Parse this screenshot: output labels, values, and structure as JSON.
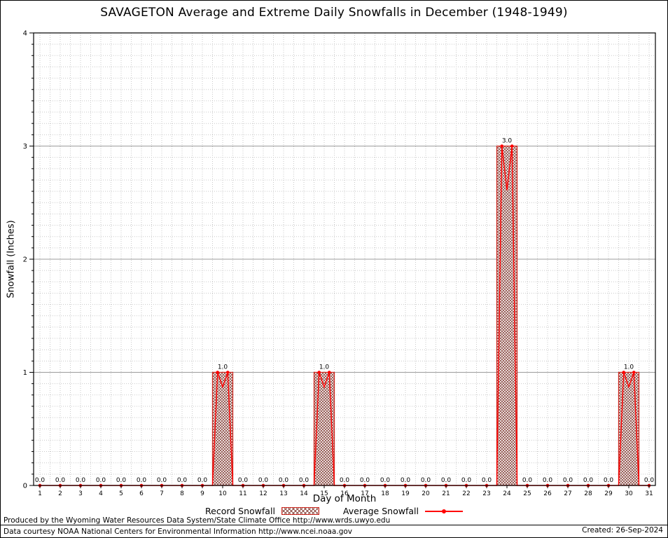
{
  "title": "SAVAGETON Average and Extreme Daily Snowfalls in December (1948-1949)",
  "chart_data": {
    "type": "bar",
    "title": "SAVAGETON Average and Extreme Daily Snowfalls in December (1948-1949)",
    "xlabel": "Day of Month",
    "ylabel": "Snowfall (Inches)",
    "ylim": [
      0,
      4
    ],
    "y_ticks": [
      0,
      1,
      2,
      3,
      4
    ],
    "grid": "on",
    "legend_position": "bottom",
    "categories": [
      1,
      2,
      3,
      4,
      5,
      6,
      7,
      8,
      9,
      10,
      11,
      12,
      13,
      14,
      15,
      16,
      17,
      18,
      19,
      20,
      21,
      22,
      23,
      24,
      25,
      26,
      27,
      28,
      29,
      30,
      31
    ],
    "series": [
      {
        "name": "Record Snowfall",
        "type": "bar",
        "values": [
          0,
          0,
          0,
          0,
          0,
          0,
          0,
          0,
          0,
          1.0,
          0,
          0,
          0,
          0,
          1.0,
          0,
          0,
          0,
          0,
          0,
          0,
          0,
          0,
          3.0,
          0,
          0,
          0,
          0,
          0,
          1.0,
          0
        ]
      },
      {
        "name": "Average Snowfall",
        "type": "line",
        "values": [
          0,
          0,
          0,
          0,
          0,
          0,
          0,
          0,
          0,
          1.0,
          0,
          0,
          0,
          0,
          1.0,
          0,
          0,
          0,
          0,
          0,
          0,
          0,
          0,
          3.0,
          0,
          0,
          0,
          0,
          0,
          1.0,
          0
        ]
      }
    ],
    "point_labels": [
      "0.0",
      "0.0",
      "0.0",
      "0.0",
      "0.0",
      "0.0",
      "0.0",
      "0.0",
      "0.0",
      "1.0",
      "0.0",
      "0.0",
      "0.0",
      "0.0",
      "1.0",
      "0.0",
      "0.0",
      "0.0",
      "0.0",
      "0.0",
      "0.0",
      "0.0",
      "0.0",
      "3.0",
      "0.0",
      "0.0",
      "0.0",
      "0.0",
      "0.0",
      "1.0",
      "0.0"
    ]
  },
  "legend": [
    {
      "label": "Record Snowfall"
    },
    {
      "label": "Average Snowfall"
    }
  ],
  "footer": {
    "line1": "Produced by the Wyoming Water Resources Data System/State Climate Office http://www.wrds.uwyo.edu",
    "line2": "Data courtesy NOAA National Centers for Environmental Information http://www.ncei.noaa.gov",
    "created": "Created: 26-Sep-2024"
  },
  "colors": {
    "line": "#ff0000",
    "bar_border": "#cf2a22",
    "bar_hatch": "#8a4a42",
    "grid_minor": "#c9c9c9",
    "grid_major": "#9c9c9c"
  }
}
